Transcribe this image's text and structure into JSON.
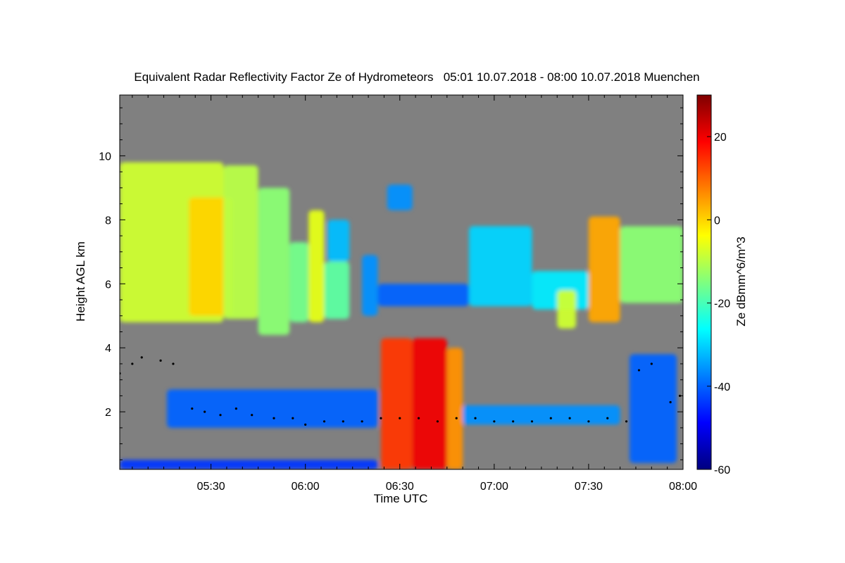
{
  "chart_data": {
    "type": "heatmap",
    "title": "Equivalent Radar Reflectivity Factor Ze of Hydrometeors   05:01 10.07.2018 - 08:00 10.07.2018 Muenchen",
    "xlabel": "Time UTC",
    "ylabel": "Height AGL km",
    "xlim_minutes": [
      301,
      480
    ],
    "ylim": [
      0.2,
      11.9
    ],
    "x_ticks": [
      {
        "label": "05:30",
        "minutes": 330
      },
      {
        "label": "06:00",
        "minutes": 360
      },
      {
        "label": "06:30",
        "minutes": 390
      },
      {
        "label": "07:00",
        "minutes": 420
      },
      {
        "label": "07:30",
        "minutes": 450
      },
      {
        "label": "08:00",
        "minutes": 480
      }
    ],
    "y_ticks": [
      {
        "label": "2",
        "value": 2
      },
      {
        "label": "4",
        "value": 4
      },
      {
        "label": "6",
        "value": 6
      },
      {
        "label": "8",
        "value": 8
      },
      {
        "label": "10",
        "value": 10
      }
    ],
    "colorbar": {
      "label": "Ze dBmm^6/m^3",
      "range": [
        -60,
        30
      ],
      "ticks": [
        {
          "label": "20",
          "value": 20
        },
        {
          "label": "0",
          "value": 0
        },
        {
          "label": "-20",
          "value": -20
        },
        {
          "label": "-40",
          "value": -40
        },
        {
          "label": "-60",
          "value": -60
        }
      ]
    },
    "background_color": "#808080",
    "colormap": [
      "#00007f",
      "#0000ff",
      "#007fff",
      "#00ffff",
      "#7fff7f",
      "#ffff00",
      "#ff7f00",
      "#ff0000",
      "#7f0000"
    ],
    "cloud_regions": [
      {
        "t0": 301,
        "t1": 334,
        "h0": 4.8,
        "h1": 9.8,
        "ze": -8
      },
      {
        "t0": 323,
        "t1": 337,
        "h0": 5.0,
        "h1": 8.7,
        "ze": 0
      },
      {
        "t0": 334,
        "t1": 345,
        "h0": 4.9,
        "h1": 9.7,
        "ze": -10
      },
      {
        "t0": 345,
        "t1": 355,
        "h0": 4.4,
        "h1": 9.0,
        "ze": -14
      },
      {
        "t0": 355,
        "t1": 361,
        "h0": 4.8,
        "h1": 7.3,
        "ze": -16
      },
      {
        "t0": 361,
        "t1": 366,
        "h0": 4.8,
        "h1": 8.3,
        "ze": -6
      },
      {
        "t0": 366,
        "t1": 374,
        "h0": 4.9,
        "h1": 6.7,
        "ze": -18
      },
      {
        "t0": 367,
        "t1": 374,
        "h0": 6.7,
        "h1": 8.0,
        "ze": -32
      },
      {
        "t0": 378,
        "t1": 383,
        "h0": 5.0,
        "h1": 6.9,
        "ze": -36
      },
      {
        "t0": 383,
        "t1": 412,
        "h0": 5.3,
        "h1": 6.0,
        "ze": -40
      },
      {
        "t0": 386,
        "t1": 394,
        "h0": 8.3,
        "h1": 9.1,
        "ze": -36
      },
      {
        "t0": 412,
        "t1": 432,
        "h0": 5.3,
        "h1": 7.8,
        "ze": -30
      },
      {
        "t0": 432,
        "t1": 450,
        "h0": 5.2,
        "h1": 6.4,
        "ze": -28
      },
      {
        "t0": 440,
        "t1": 446,
        "h0": 4.6,
        "h1": 5.8,
        "ze": -8
      },
      {
        "t0": 450,
        "t1": 460,
        "h0": 4.8,
        "h1": 8.1,
        "ze": 4
      },
      {
        "t0": 460,
        "t1": 480,
        "h0": 5.4,
        "h1": 7.8,
        "ze": -14
      },
      {
        "t0": 384,
        "t1": 394,
        "h0": 0.2,
        "h1": 4.3,
        "ze": 14
      },
      {
        "t0": 394,
        "t1": 405,
        "h0": 0.2,
        "h1": 4.3,
        "ze": 20
      },
      {
        "t0": 405,
        "t1": 410,
        "h0": 0.2,
        "h1": 4.0,
        "ze": 6
      },
      {
        "t0": 316,
        "t1": 383,
        "h0": 1.5,
        "h1": 2.7,
        "ze": -40
      },
      {
        "t0": 410,
        "t1": 460,
        "h0": 1.6,
        "h1": 2.2,
        "ze": -36
      },
      {
        "t0": 463,
        "t1": 478,
        "h0": 0.4,
        "h1": 3.8,
        "ze": -40
      },
      {
        "t0": 301,
        "t1": 383,
        "h0": 0.2,
        "h1": 0.5,
        "ze": -44
      }
    ],
    "ceilometer_points": [
      [
        301,
        3.2
      ],
      [
        305,
        3.5
      ],
      [
        308,
        3.7
      ],
      [
        314,
        3.6
      ],
      [
        318,
        3.5
      ],
      [
        324,
        2.1
      ],
      [
        328,
        2.0
      ],
      [
        333,
        1.9
      ],
      [
        338,
        2.1
      ],
      [
        343,
        1.9
      ],
      [
        350,
        1.8
      ],
      [
        356,
        1.8
      ],
      [
        360,
        1.6
      ],
      [
        366,
        1.7
      ],
      [
        372,
        1.7
      ],
      [
        378,
        1.7
      ],
      [
        384,
        1.8
      ],
      [
        390,
        1.8
      ],
      [
        396,
        1.8
      ],
      [
        402,
        1.7
      ],
      [
        408,
        1.8
      ],
      [
        414,
        1.8
      ],
      [
        420,
        1.7
      ],
      [
        426,
        1.7
      ],
      [
        432,
        1.7
      ],
      [
        438,
        1.8
      ],
      [
        444,
        1.8
      ],
      [
        450,
        1.7
      ],
      [
        456,
        1.8
      ],
      [
        462,
        1.7
      ],
      [
        466,
        3.3
      ],
      [
        470,
        3.5
      ],
      [
        476,
        2.3
      ],
      [
        479,
        2.5
      ]
    ]
  }
}
